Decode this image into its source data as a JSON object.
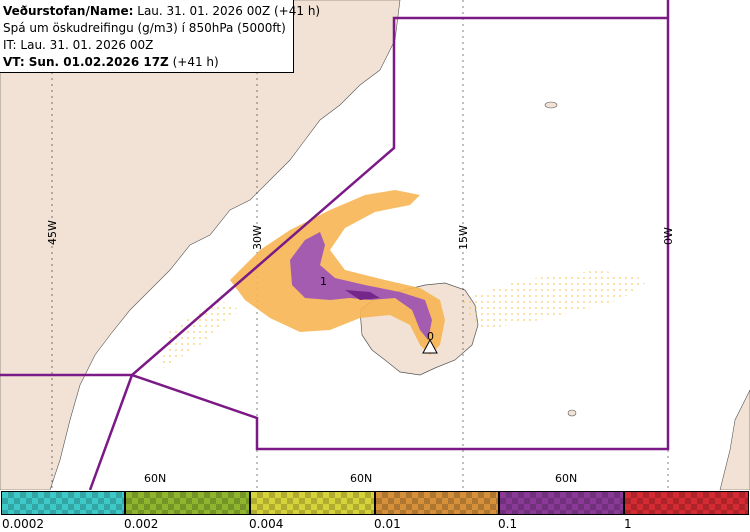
{
  "header": {
    "line1_label": "Veðurstofan/Name:",
    "line1_value": "Lau. 31. 01. 2026 00Z (+41 h)",
    "line2": "Spá um öskudreifingu (g/m3) í 850hPa (5000ft)",
    "line3": "IT: Lau. 31. 01. 2026 00Z",
    "line4_label": "VT: Sun. 01.02.2026 17Z",
    "line4_value": "(+41 h)"
  },
  "map": {
    "longitude_labels": [
      "45W",
      "30W",
      "15W",
      "0W"
    ],
    "latitude_labels": [
      "60N",
      "60N",
      "60N"
    ],
    "contour_label": "1",
    "volcano_label": "0",
    "colors": {
      "land": "#f1e2d5",
      "sea": "#ffffff",
      "region_border": "#7b1a86",
      "ash_low": "#f7b553",
      "ash_mid": "#a45cb0",
      "ash_high": "#74268a"
    }
  },
  "legend": {
    "labels": [
      "0.0002",
      "0.002",
      "0.004",
      "0.01",
      "0.1",
      "1"
    ],
    "colors": [
      "#3ec9c9",
      "#8fb52e",
      "#d6d23a",
      "#d6903a",
      "#8a3a96",
      "#d42a32"
    ]
  }
}
